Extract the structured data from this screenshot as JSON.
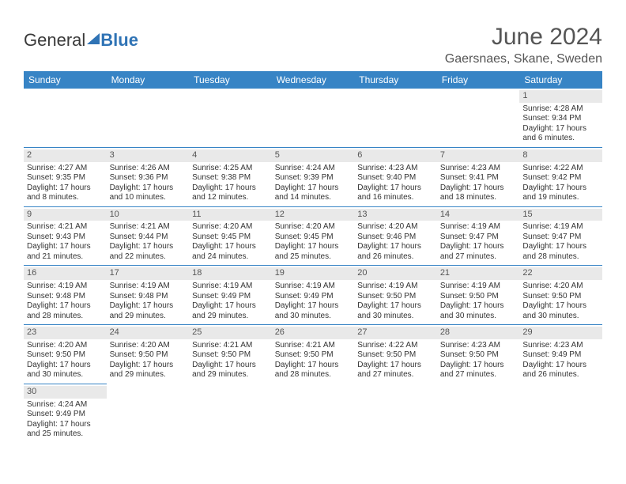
{
  "brand": {
    "part1": "General",
    "part2": "Blue"
  },
  "title": "June 2024",
  "location": "Gaersnaes, Skane, Sweden",
  "colors": {
    "header_bg": "#3784c5",
    "header_text": "#ffffff",
    "daynum_bg": "#e9e9e9",
    "border": "#3784c5",
    "text": "#333333",
    "brand_blue": "#2f73b5"
  },
  "weekdays": [
    "Sunday",
    "Monday",
    "Tuesday",
    "Wednesday",
    "Thursday",
    "Friday",
    "Saturday"
  ],
  "weeks": [
    [
      null,
      null,
      null,
      null,
      null,
      null,
      {
        "d": "1",
        "sr": "Sunrise: 4:28 AM",
        "ss": "Sunset: 9:34 PM",
        "dl1": "Daylight: 17 hours",
        "dl2": "and 6 minutes."
      }
    ],
    [
      {
        "d": "2",
        "sr": "Sunrise: 4:27 AM",
        "ss": "Sunset: 9:35 PM",
        "dl1": "Daylight: 17 hours",
        "dl2": "and 8 minutes."
      },
      {
        "d": "3",
        "sr": "Sunrise: 4:26 AM",
        "ss": "Sunset: 9:36 PM",
        "dl1": "Daylight: 17 hours",
        "dl2": "and 10 minutes."
      },
      {
        "d": "4",
        "sr": "Sunrise: 4:25 AM",
        "ss": "Sunset: 9:38 PM",
        "dl1": "Daylight: 17 hours",
        "dl2": "and 12 minutes."
      },
      {
        "d": "5",
        "sr": "Sunrise: 4:24 AM",
        "ss": "Sunset: 9:39 PM",
        "dl1": "Daylight: 17 hours",
        "dl2": "and 14 minutes."
      },
      {
        "d": "6",
        "sr": "Sunrise: 4:23 AM",
        "ss": "Sunset: 9:40 PM",
        "dl1": "Daylight: 17 hours",
        "dl2": "and 16 minutes."
      },
      {
        "d": "7",
        "sr": "Sunrise: 4:23 AM",
        "ss": "Sunset: 9:41 PM",
        "dl1": "Daylight: 17 hours",
        "dl2": "and 18 minutes."
      },
      {
        "d": "8",
        "sr": "Sunrise: 4:22 AM",
        "ss": "Sunset: 9:42 PM",
        "dl1": "Daylight: 17 hours",
        "dl2": "and 19 minutes."
      }
    ],
    [
      {
        "d": "9",
        "sr": "Sunrise: 4:21 AM",
        "ss": "Sunset: 9:43 PM",
        "dl1": "Daylight: 17 hours",
        "dl2": "and 21 minutes."
      },
      {
        "d": "10",
        "sr": "Sunrise: 4:21 AM",
        "ss": "Sunset: 9:44 PM",
        "dl1": "Daylight: 17 hours",
        "dl2": "and 22 minutes."
      },
      {
        "d": "11",
        "sr": "Sunrise: 4:20 AM",
        "ss": "Sunset: 9:45 PM",
        "dl1": "Daylight: 17 hours",
        "dl2": "and 24 minutes."
      },
      {
        "d": "12",
        "sr": "Sunrise: 4:20 AM",
        "ss": "Sunset: 9:45 PM",
        "dl1": "Daylight: 17 hours",
        "dl2": "and 25 minutes."
      },
      {
        "d": "13",
        "sr": "Sunrise: 4:20 AM",
        "ss": "Sunset: 9:46 PM",
        "dl1": "Daylight: 17 hours",
        "dl2": "and 26 minutes."
      },
      {
        "d": "14",
        "sr": "Sunrise: 4:19 AM",
        "ss": "Sunset: 9:47 PM",
        "dl1": "Daylight: 17 hours",
        "dl2": "and 27 minutes."
      },
      {
        "d": "15",
        "sr": "Sunrise: 4:19 AM",
        "ss": "Sunset: 9:47 PM",
        "dl1": "Daylight: 17 hours",
        "dl2": "and 28 minutes."
      }
    ],
    [
      {
        "d": "16",
        "sr": "Sunrise: 4:19 AM",
        "ss": "Sunset: 9:48 PM",
        "dl1": "Daylight: 17 hours",
        "dl2": "and 28 minutes."
      },
      {
        "d": "17",
        "sr": "Sunrise: 4:19 AM",
        "ss": "Sunset: 9:48 PM",
        "dl1": "Daylight: 17 hours",
        "dl2": "and 29 minutes."
      },
      {
        "d": "18",
        "sr": "Sunrise: 4:19 AM",
        "ss": "Sunset: 9:49 PM",
        "dl1": "Daylight: 17 hours",
        "dl2": "and 29 minutes."
      },
      {
        "d": "19",
        "sr": "Sunrise: 4:19 AM",
        "ss": "Sunset: 9:49 PM",
        "dl1": "Daylight: 17 hours",
        "dl2": "and 30 minutes."
      },
      {
        "d": "20",
        "sr": "Sunrise: 4:19 AM",
        "ss": "Sunset: 9:50 PM",
        "dl1": "Daylight: 17 hours",
        "dl2": "and 30 minutes."
      },
      {
        "d": "21",
        "sr": "Sunrise: 4:19 AM",
        "ss": "Sunset: 9:50 PM",
        "dl1": "Daylight: 17 hours",
        "dl2": "and 30 minutes."
      },
      {
        "d": "22",
        "sr": "Sunrise: 4:20 AM",
        "ss": "Sunset: 9:50 PM",
        "dl1": "Daylight: 17 hours",
        "dl2": "and 30 minutes."
      }
    ],
    [
      {
        "d": "23",
        "sr": "Sunrise: 4:20 AM",
        "ss": "Sunset: 9:50 PM",
        "dl1": "Daylight: 17 hours",
        "dl2": "and 30 minutes."
      },
      {
        "d": "24",
        "sr": "Sunrise: 4:20 AM",
        "ss": "Sunset: 9:50 PM",
        "dl1": "Daylight: 17 hours",
        "dl2": "and 29 minutes."
      },
      {
        "d": "25",
        "sr": "Sunrise: 4:21 AM",
        "ss": "Sunset: 9:50 PM",
        "dl1": "Daylight: 17 hours",
        "dl2": "and 29 minutes."
      },
      {
        "d": "26",
        "sr": "Sunrise: 4:21 AM",
        "ss": "Sunset: 9:50 PM",
        "dl1": "Daylight: 17 hours",
        "dl2": "and 28 minutes."
      },
      {
        "d": "27",
        "sr": "Sunrise: 4:22 AM",
        "ss": "Sunset: 9:50 PM",
        "dl1": "Daylight: 17 hours",
        "dl2": "and 27 minutes."
      },
      {
        "d": "28",
        "sr": "Sunrise: 4:23 AM",
        "ss": "Sunset: 9:50 PM",
        "dl1": "Daylight: 17 hours",
        "dl2": "and 27 minutes."
      },
      {
        "d": "29",
        "sr": "Sunrise: 4:23 AM",
        "ss": "Sunset: 9:49 PM",
        "dl1": "Daylight: 17 hours",
        "dl2": "and 26 minutes."
      }
    ],
    [
      {
        "d": "30",
        "sr": "Sunrise: 4:24 AM",
        "ss": "Sunset: 9:49 PM",
        "dl1": "Daylight: 17 hours",
        "dl2": "and 25 minutes."
      },
      null,
      null,
      null,
      null,
      null,
      null
    ]
  ]
}
